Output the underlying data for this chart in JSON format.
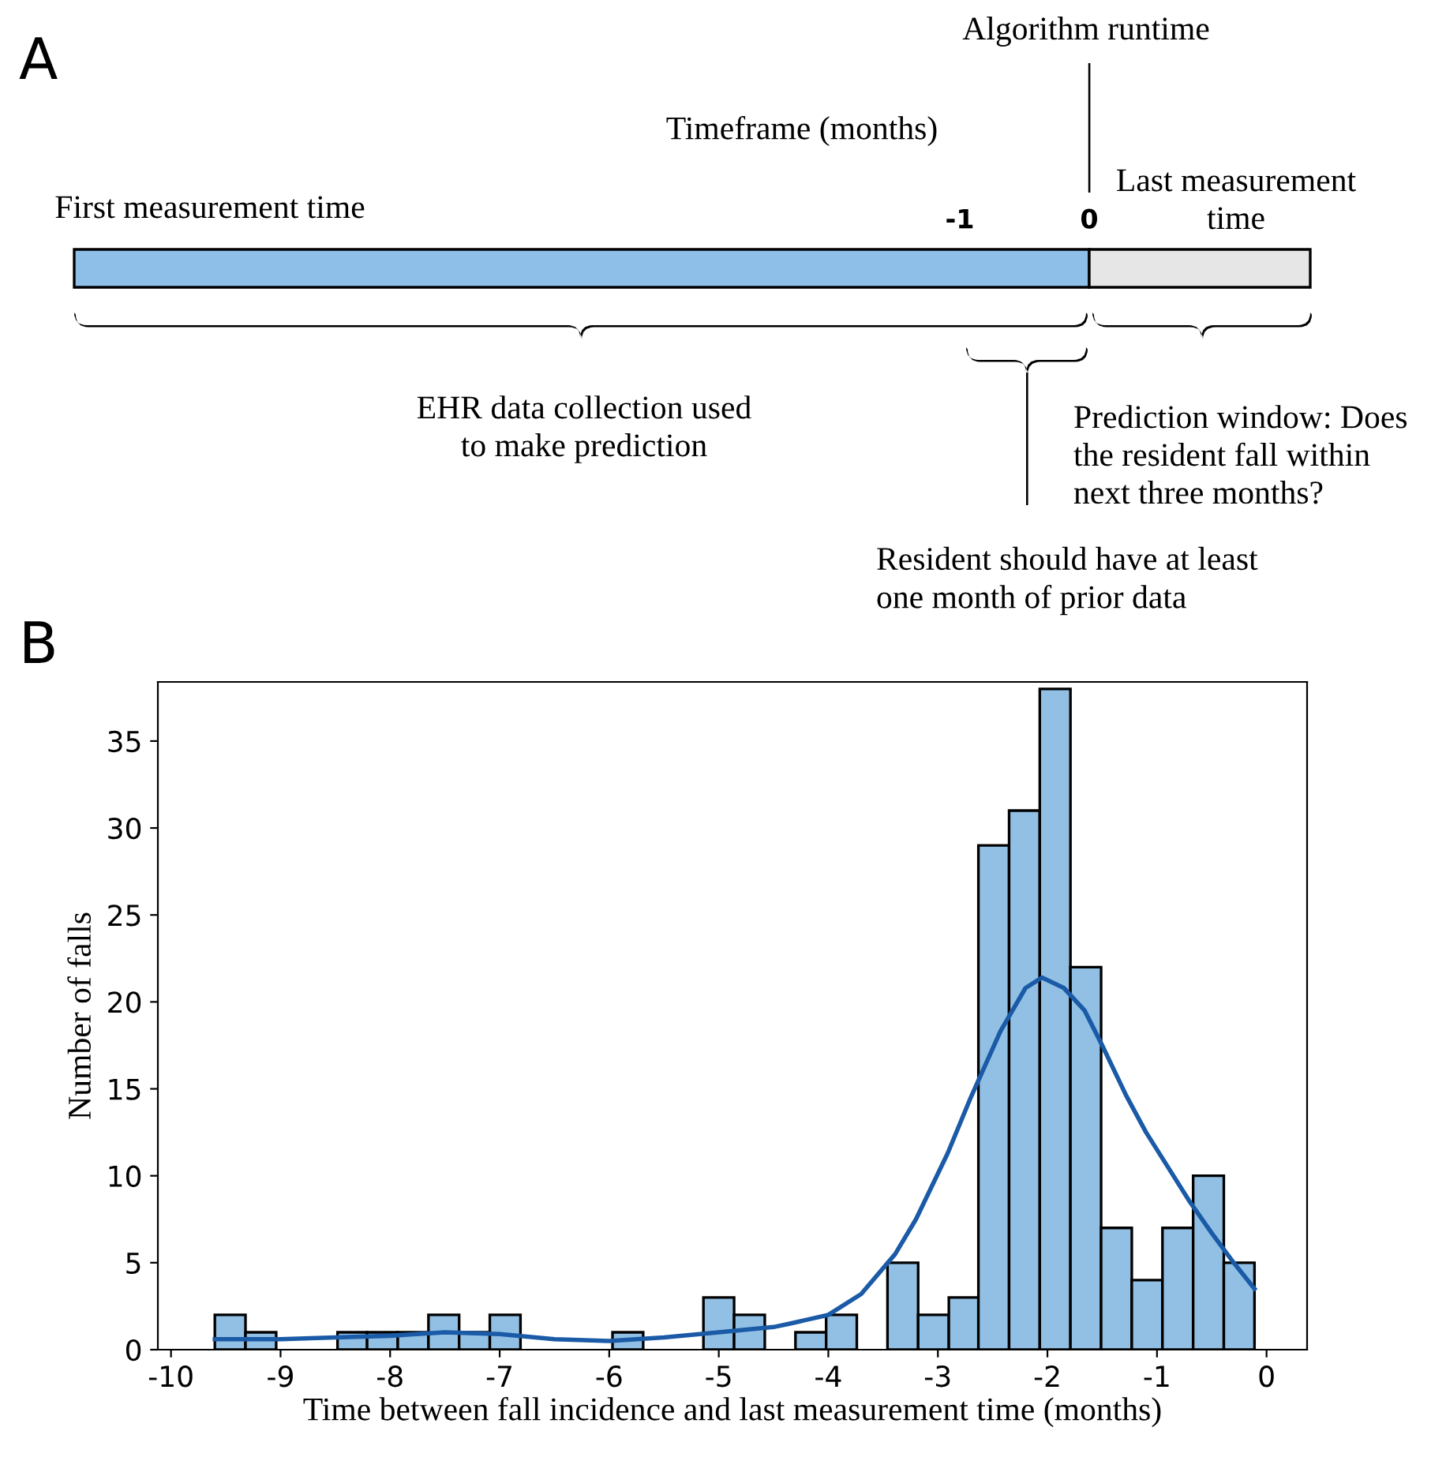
{
  "chart_data": [
    {
      "type": "other",
      "title": "A",
      "annotations": [
        "Algorithm runtime",
        "Timeframe (months)",
        "First measurement time",
        "-1",
        "0",
        "Last measurement\ntime",
        "EHR data collection used\nto make prediction",
        "Prediction window: Does\nthe resident fall within\nnext three months?",
        "Resident should have at least\none month of prior data"
      ]
    },
    {
      "type": "histogram",
      "title": "B",
      "xlabel": "Time between fall incidence and last measurement time (months)",
      "ylabel": "Number of falls",
      "bins": [
        -9.6,
        -9.32,
        -9.04,
        -8.48,
        -8.21,
        -7.93,
        -7.65,
        -7.37,
        -7.09,
        -6.81,
        -5.97,
        -5.69,
        -5.14,
        -4.86,
        -4.58,
        -4.3,
        -4.02,
        -3.74,
        -3.46,
        -3.18,
        -2.9,
        -2.63,
        -2.35,
        -2.07,
        -1.79,
        -1.51,
        -1.23,
        -0.95,
        -0.67,
        -0.39,
        -0.11
      ],
      "values": [
        2,
        1,
        0,
        1,
        1,
        1,
        2,
        1,
        2,
        0,
        1,
        0,
        3,
        2,
        0,
        1,
        2,
        0,
        5,
        2,
        3,
        29,
        31,
        38,
        22,
        7,
        4,
        7,
        10,
        5
      ],
      "color": "#92c0e4",
      "series": [
        {
          "type": "line",
          "color": "#1a5aa6",
          "x": [
            -9.6,
            -9,
            -8.5,
            -8,
            -7.5,
            -7,
            -6.5,
            -6,
            -5.5,
            -5,
            -4.5,
            -4.35,
            -4,
            -3.7,
            -3.39,
            -3.2,
            -2.91,
            -2.7,
            -2.43,
            -2.2,
            -2.05,
            -1.85,
            -1.66,
            -1.5,
            -1.28,
            -1.1,
            -0.89,
            -0.7,
            -0.5,
            -0.3,
            -0.11
          ],
          "values": [
            0.6,
            0.6,
            0.7,
            0.8,
            1.0,
            0.9,
            0.6,
            0.5,
            0.7,
            1.0,
            1.3,
            1.5,
            2.0,
            3.2,
            5.5,
            7.5,
            11.3,
            14.5,
            18.3,
            20.8,
            21.4,
            20.8,
            19.5,
            17.5,
            14.6,
            12.5,
            10.4,
            8.5,
            6.7,
            5.0,
            3.5
          ]
        }
      ],
      "xlim": [
        -10.12,
        0.37
      ],
      "ylim": [
        0,
        38.4
      ],
      "xticks": [
        -10,
        -9,
        -8,
        -7,
        -6,
        -5,
        -4,
        -3,
        -2,
        -1,
        0
      ],
      "yticks": [
        0,
        5,
        10,
        15,
        20,
        25,
        30,
        35
      ]
    }
  ]
}
